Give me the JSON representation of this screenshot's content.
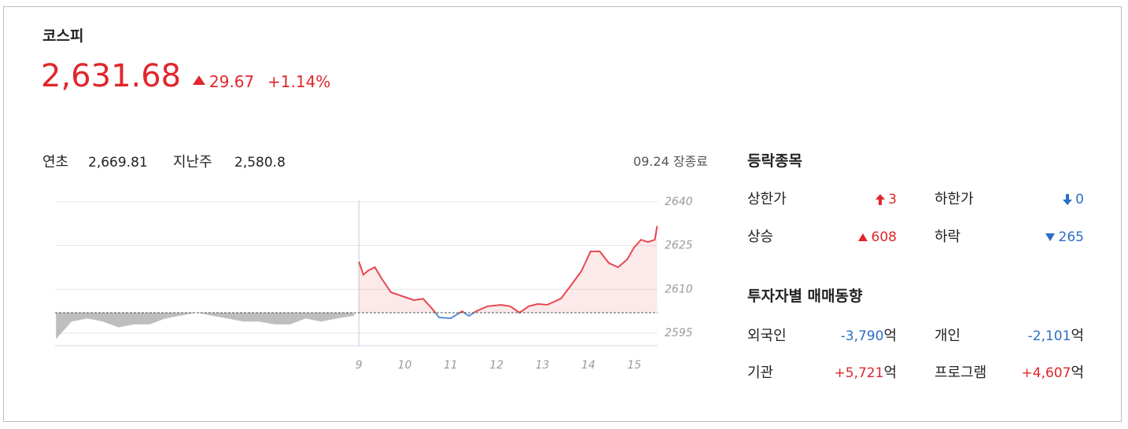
{
  "header": {
    "name": "코스피",
    "price": "2,631.68",
    "change": "29.67",
    "change_pct": "+1.14%"
  },
  "summary": [
    {
      "label": "연초",
      "value": "2,669.81"
    },
    {
      "label": "지난주",
      "value": "2,580.8"
    }
  ],
  "status": "09.24 장종료",
  "breadth": {
    "title": "등락종목",
    "items": [
      {
        "label": "상한가",
        "value": "3"
      },
      {
        "label": "하한가",
        "value": "0"
      },
      {
        "label": "상승",
        "value": "608"
      },
      {
        "label": "하락",
        "value": "265"
      }
    ]
  },
  "investors": {
    "title": "투자자별 매매동향",
    "unit": "억",
    "items": [
      {
        "label": "외국인",
        "value": "-3,790"
      },
      {
        "label": "개인",
        "value": "-2,101"
      },
      {
        "label": "기관",
        "value": "+5,721"
      },
      {
        "label": "프로그램",
        "value": "+4,607"
      }
    ]
  },
  "chart_data": {
    "type": "line",
    "xlim": [
      2.38,
      15.51
    ],
    "ylim": [
      2590.7,
      2641.3
    ],
    "xticks": [
      9,
      10,
      11,
      12,
      13,
      14,
      15
    ],
    "yticks": [
      2595,
      2610,
      2625,
      2640
    ],
    "grid": true,
    "baseline": 2602.01,
    "below_color": "#5b8fd6",
    "series": [
      {
        "color": "#a8a8a8",
        "x": [
          2.4,
          2.74,
          3.08,
          3.42,
          3.76,
          4.1,
          4.44,
          4.78,
          5.12,
          5.46,
          5.8,
          6.14,
          6.48,
          6.82,
          7.16,
          7.5,
          7.84,
          8.18,
          8.52,
          8.9
        ],
        "values": [
          2593,
          2599,
          2600,
          2599,
          2597,
          2598,
          2598,
          2600,
          2601,
          2602,
          2601,
          2600,
          2599,
          2599,
          2598,
          2598,
          2600,
          2599,
          2600,
          2601
        ]
      },
      {
        "color": "#e8474f",
        "x": [
          9.0,
          9.1,
          9.2,
          9.35,
          9.5,
          9.7,
          10.0,
          10.2,
          10.4,
          10.6,
          10.75,
          11.0,
          11.25,
          11.4,
          11.55,
          11.8,
          12.1,
          12.3,
          12.5,
          12.7,
          12.9,
          13.1,
          13.4,
          13.6,
          13.85,
          14.05,
          14.25,
          14.45,
          14.65,
          14.85,
          15.0,
          15.15,
          15.3,
          15.45,
          15.5
        ],
        "values": [
          2619.5,
          2615,
          2616.4,
          2617.6,
          2613.6,
          2609,
          2607.4,
          2606.3,
          2606.8,
          2603.3,
          2600.4,
          2600.1,
          2602.5,
          2600.9,
          2602.5,
          2604.2,
          2604.7,
          2604.2,
          2602,
          2604.2,
          2605,
          2604.7,
          2606.8,
          2610.9,
          2616.3,
          2623,
          2623,
          2619,
          2617.6,
          2620.3,
          2624.4,
          2627,
          2626.2,
          2627,
          2631.68
        ]
      }
    ]
  }
}
